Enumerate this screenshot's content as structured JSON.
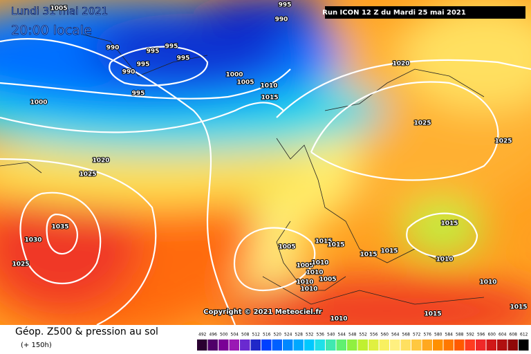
{
  "header": {
    "date": "Lundi 31 mai 2021",
    "time": "20:00 locale",
    "run": "Run ICON 12 Z du Mardi 25 mai 2021"
  },
  "copyright": "Copyright © 2021 Meteociel.fr",
  "isobar_labels": [
    "1005",
    "995",
    "990",
    "990",
    "995",
    "995",
    "995",
    "995",
    "990",
    "995",
    "1000",
    "1005",
    "1010",
    "1015",
    "1000",
    "1020",
    "1025",
    "1025",
    "1020",
    "1025",
    "1035",
    "1030",
    "1025",
    "1005",
    "1015",
    "1015",
    "1015",
    "1015",
    "1015",
    "1010",
    "1005",
    "1010",
    "1010",
    "1005",
    "1010",
    "1010",
    "1015",
    "1010",
    "1015",
    "1010"
  ],
  "footer": {
    "title": "Géop. Z500 & pression au sol",
    "lead": "(+ 150h)"
  },
  "scale": {
    "values": [
      492,
      496,
      500,
      504,
      508,
      512,
      516,
      520,
      524,
      528,
      532,
      536,
      540,
      544,
      548,
      552,
      556,
      560,
      564,
      568,
      572,
      576,
      580,
      584,
      588,
      592,
      596,
      600,
      604,
      608,
      612
    ],
    "colors": [
      "#2a0030",
      "#50006a",
      "#7a0096",
      "#9a18b4",
      "#6a2ad0",
      "#2028c8",
      "#0040ff",
      "#0060ff",
      "#0088ff",
      "#00a8ff",
      "#00c8ff",
      "#20e0e8",
      "#40e8b0",
      "#60f070",
      "#90f040",
      "#c0f030",
      "#e0f040",
      "#f8f060",
      "#fff080",
      "#ffe060",
      "#ffc840",
      "#ffa820",
      "#ff9000",
      "#ff7800",
      "#ff5a00",
      "#ff3c20",
      "#f02828",
      "#d01818",
      "#b01010",
      "#900808",
      "#000000"
    ]
  }
}
